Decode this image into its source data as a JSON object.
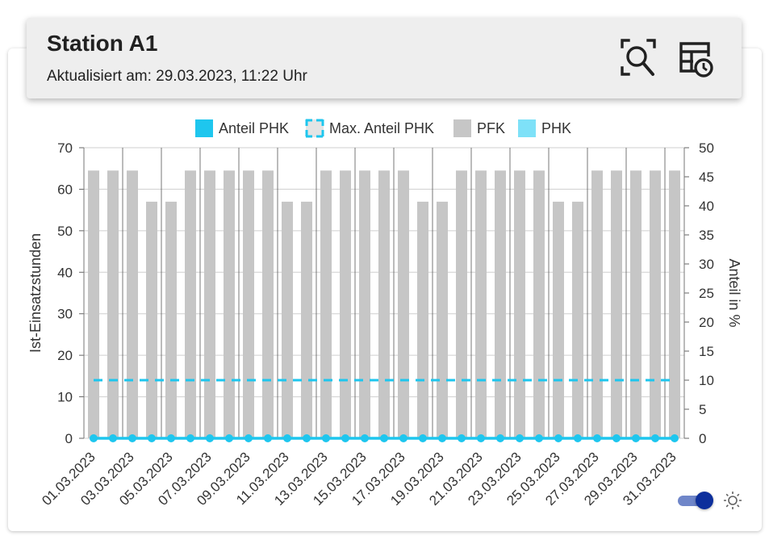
{
  "header": {
    "title": "Station A1",
    "subtitle": "Aktualisiert am: 29.03.2023, 11:22 Uhr",
    "search_icon": "zoom-search-icon",
    "history_icon": "table-clock-icon"
  },
  "colors": {
    "pfk": "#c6c6c6",
    "phk": "#7ee1f8",
    "anteil_phk": "#1ec6ee",
    "max_anteil_phk": "#1ec6ee",
    "toggle_track": "#6f86c9",
    "toggle_knob": "#0d2f9c"
  },
  "controls": {
    "toggle_on": true,
    "toggle_icon": "brightness-icon"
  },
  "chart_data": {
    "type": "bar",
    "legend_position": "top",
    "legend": [
      "Anteil PHK",
      "Max. Anteil PHK",
      "PFK",
      "PHK"
    ],
    "ylabel_left": "Ist-Einsatzstunden",
    "ylabel_right": "Anteil in %",
    "ylim_left": [
      0,
      70
    ],
    "ylim_right": [
      0,
      50
    ],
    "yticks_left": [
      "0",
      "10",
      "20",
      "30",
      "40",
      "50",
      "60",
      "70"
    ],
    "yticks_right": [
      "0",
      "5",
      "10",
      "15",
      "20",
      "25",
      "30",
      "35",
      "40",
      "45",
      "50"
    ],
    "grid": true,
    "categories": [
      "01.03.2023",
      "02.03.2023",
      "03.03.2023",
      "04.03.2023",
      "05.03.2023",
      "06.03.2023",
      "07.03.2023",
      "08.03.2023",
      "09.03.2023",
      "10.03.2023",
      "11.03.2023",
      "12.03.2023",
      "13.03.2023",
      "14.03.2023",
      "15.03.2023",
      "16.03.2023",
      "17.03.2023",
      "18.03.2023",
      "19.03.2023",
      "20.03.2023",
      "21.03.2023",
      "22.03.2023",
      "23.03.2023",
      "24.03.2023",
      "25.03.2023",
      "26.03.2023",
      "27.03.2023",
      "28.03.2023",
      "29.03.2023",
      "30.03.2023",
      "31.03.2023"
    ],
    "xtick_labels": [
      "01.03.2023",
      "03.03.2023",
      "05.03.2023",
      "07.03.2023",
      "09.03.2023",
      "11.03.2023",
      "13.03.2023",
      "15.03.2023",
      "17.03.2023",
      "19.03.2023",
      "21.03.2023",
      "23.03.2023",
      "25.03.2023",
      "27.03.2023",
      "29.03.2023",
      "31.03.2023"
    ],
    "series": [
      {
        "name": "PFK",
        "type": "bar",
        "axis": "left",
        "values": [
          64.5,
          64.5,
          64.5,
          57,
          57,
          64.5,
          64.5,
          64.5,
          64.5,
          64.5,
          57,
          57,
          64.5,
          64.5,
          64.5,
          64.5,
          64.5,
          57,
          57,
          64.5,
          64.5,
          64.5,
          64.5,
          64.5,
          57,
          57,
          64.5,
          64.5,
          64.5,
          64.5,
          64.5
        ]
      },
      {
        "name": "PHK",
        "type": "bar",
        "axis": "left",
        "values": [
          0,
          0,
          0,
          0,
          0,
          0,
          0,
          0,
          0,
          0,
          0,
          0,
          0,
          0,
          0,
          0,
          0,
          0,
          0,
          0,
          0,
          0,
          0,
          0,
          0,
          0,
          0,
          0,
          0,
          0,
          0
        ]
      },
      {
        "name": "Anteil PHK",
        "type": "line",
        "axis": "right",
        "values": [
          0,
          0,
          0,
          0,
          0,
          0,
          0,
          0,
          0,
          0,
          0,
          0,
          0,
          0,
          0,
          0,
          0,
          0,
          0,
          0,
          0,
          0,
          0,
          0,
          0,
          0,
          0,
          0,
          0,
          0,
          0
        ]
      },
      {
        "name": "Max. Anteil PHK",
        "type": "line",
        "style": "dashed",
        "axis": "right",
        "values": [
          10,
          10,
          10,
          10,
          10,
          10,
          10,
          10,
          10,
          10,
          10,
          10,
          10,
          10,
          10,
          10,
          10,
          10,
          10,
          10,
          10,
          10,
          10,
          10,
          10,
          10,
          10,
          10,
          10,
          10,
          10
        ]
      }
    ]
  }
}
